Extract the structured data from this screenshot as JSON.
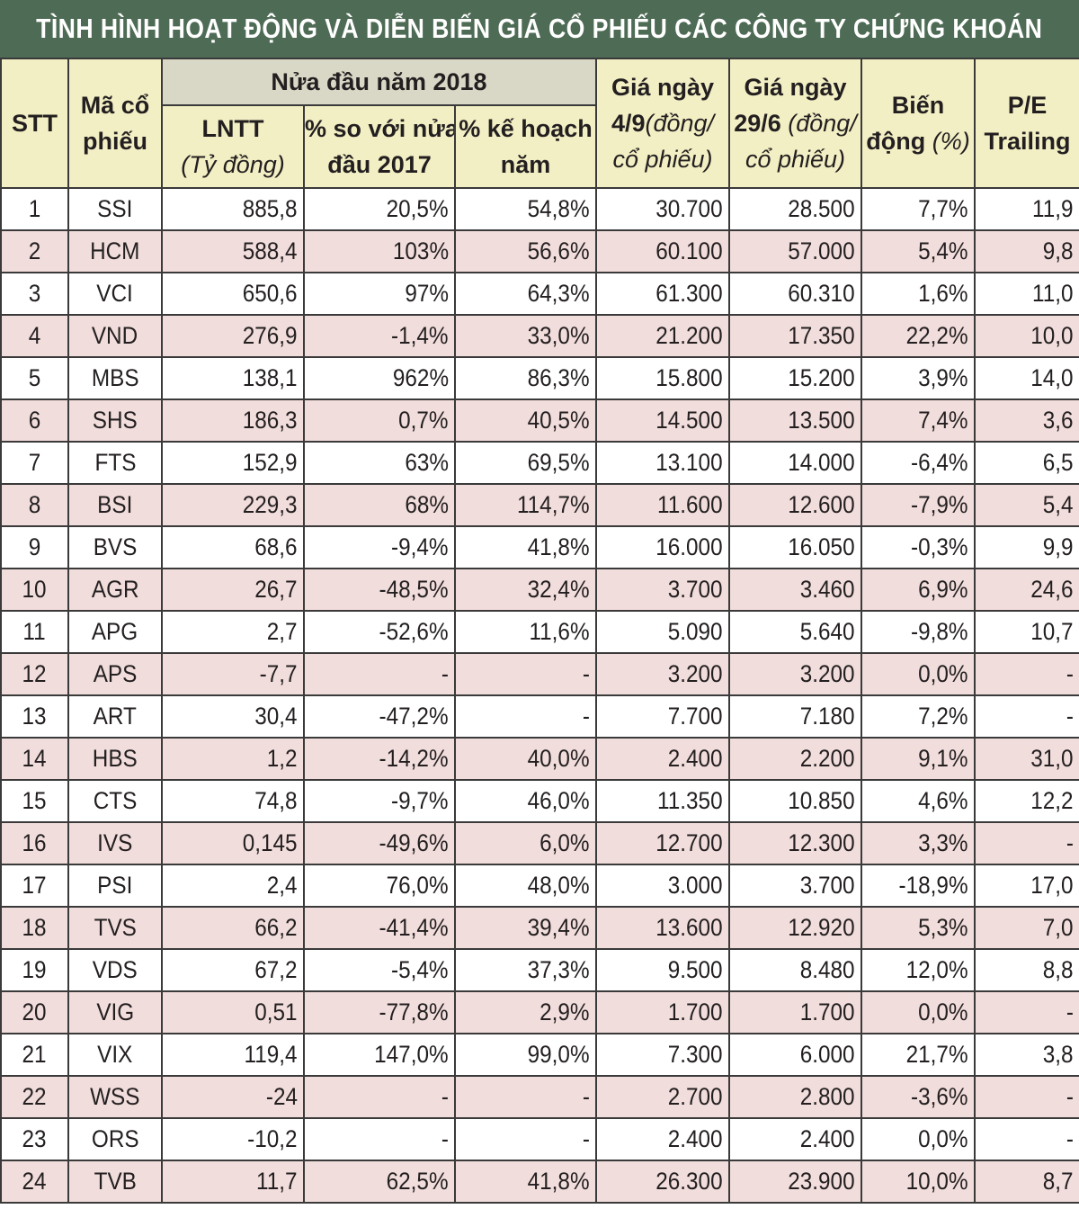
{
  "title": "TÌNH HÌNH HOẠT ĐỘNG VÀ DIỄN BIẾN GIÁ CỔ PHIẾU CÁC CÔNG TY CHỨNG KHOÁN",
  "headers": {
    "stt": "STT",
    "ma_line1": "Mã cổ",
    "ma_line2": "phiếu",
    "group": "Nửa đầu năm 2018",
    "lntt_line1": "LNTT",
    "lntt_line2": "(Tỷ đồng)",
    "so_voi_line1": "% so với nửa",
    "so_voi_line2": "đầu 2017",
    "ke_hoach_line1": "% kế hoạch",
    "ke_hoach_line2": "năm",
    "gia49_line1": "Giá ngày",
    "gia49_line2a": "4/9",
    "gia49_line2b": "(đồng/",
    "gia49_line3": "cổ phiếu)",
    "gia296_line1": "Giá ngày",
    "gia296_line2a": "29/6",
    "gia296_line2b": " (đồng/",
    "gia296_line3": "cổ phiếu)",
    "bien_dong_line1": "Biến",
    "bien_dong_line2a": "động",
    "bien_dong_line2b": " (%)",
    "pe_line1": "P/E",
    "pe_line2": "Trailing"
  },
  "rows": [
    [
      "1",
      "SSI",
      "885,8",
      "20,5%",
      "54,8%",
      "30.700",
      "28.500",
      "7,7%",
      "11,9"
    ],
    [
      "2",
      "HCM",
      "588,4",
      "103%",
      "56,6%",
      "60.100",
      "57.000",
      "5,4%",
      "9,8"
    ],
    [
      "3",
      "VCI",
      "650,6",
      "97%",
      "64,3%",
      "61.300",
      "60.310",
      "1,6%",
      "11,0"
    ],
    [
      "4",
      "VND",
      "276,9",
      "-1,4%",
      "33,0%",
      "21.200",
      "17.350",
      "22,2%",
      "10,0"
    ],
    [
      "5",
      "MBS",
      "138,1",
      "962%",
      "86,3%",
      "15.800",
      "15.200",
      "3,9%",
      "14,0"
    ],
    [
      "6",
      "SHS",
      "186,3",
      "0,7%",
      "40,5%",
      "14.500",
      "13.500",
      "7,4%",
      "3,6"
    ],
    [
      "7",
      "FTS",
      "152,9",
      "63%",
      "69,5%",
      "13.100",
      "14.000",
      "-6,4%",
      "6,5"
    ],
    [
      "8",
      "BSI",
      "229,3",
      "68%",
      "114,7%",
      "11.600",
      "12.600",
      "-7,9%",
      "5,4"
    ],
    [
      "9",
      "BVS",
      "68,6",
      "-9,4%",
      "41,8%",
      "16.000",
      "16.050",
      "-0,3%",
      "9,9"
    ],
    [
      "10",
      "AGR",
      "26,7",
      "-48,5%",
      "32,4%",
      "3.700",
      "3.460",
      "6,9%",
      "24,6"
    ],
    [
      "11",
      "APG",
      "2,7",
      "-52,6%",
      "11,6%",
      "5.090",
      "5.640",
      "-9,8%",
      "10,7"
    ],
    [
      "12",
      "APS",
      "-7,7",
      "-",
      "-",
      "3.200",
      "3.200",
      "0,0%",
      "-"
    ],
    [
      "13",
      "ART",
      "30,4",
      "-47,2%",
      "-",
      "7.700",
      "7.180",
      "7,2%",
      "-"
    ],
    [
      "14",
      "HBS",
      "1,2",
      "-14,2%",
      "40,0%",
      "2.400",
      "2.200",
      "9,1%",
      "31,0"
    ],
    [
      "15",
      "CTS",
      "74,8",
      "-9,7%",
      "46,0%",
      "11.350",
      "10.850",
      "4,6%",
      "12,2"
    ],
    [
      "16",
      "IVS",
      "0,145",
      "-49,6%",
      "6,0%",
      "12.700",
      "12.300",
      "3,3%",
      "-"
    ],
    [
      "17",
      "PSI",
      "2,4",
      "76,0%",
      "48,0%",
      "3.000",
      "3.700",
      "-18,9%",
      "17,0"
    ],
    [
      "18",
      "TVS",
      "66,2",
      "-41,4%",
      "39,4%",
      "13.600",
      "12.920",
      "5,3%",
      "7,0"
    ],
    [
      "19",
      "VDS",
      "67,2",
      "-5,4%",
      "37,3%",
      "9.500",
      "8.480",
      "12,0%",
      "8,8"
    ],
    [
      "20",
      "VIG",
      "0,51",
      "-77,8%",
      "2,9%",
      "1.700",
      "1.700",
      "0,0%",
      "-"
    ],
    [
      "21",
      "VIX",
      "119,4",
      "147,0%",
      "99,0%",
      "7.300",
      "6.000",
      "21,7%",
      "3,8"
    ],
    [
      "22",
      "WSS",
      "-24",
      "-",
      "-",
      "2.700",
      "2.800",
      "-3,6%",
      "-"
    ],
    [
      "23",
      "ORS",
      "-10,2",
      "-",
      "-",
      "2.400",
      "2.400",
      "0,0%",
      "-"
    ],
    [
      "24",
      "TVB",
      "11,7",
      "62,5%",
      "41,8%",
      "26.300",
      "23.900",
      "10,0%",
      "8,7"
    ]
  ],
  "colors": {
    "title_bg": "#4e6b55",
    "header_bg": "#f3efc4",
    "group_bg": "#d9d8c6",
    "row_alt_bg": "#f1dddb"
  }
}
